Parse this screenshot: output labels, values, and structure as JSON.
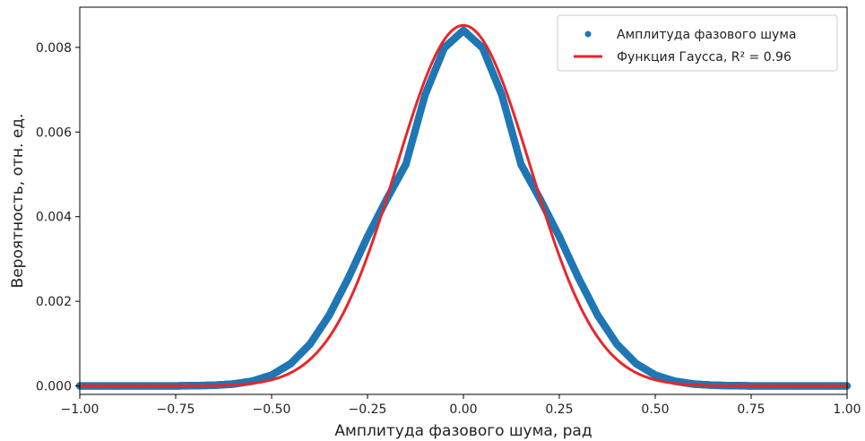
{
  "chart_data": {
    "type": "scatter",
    "title": "",
    "xlabel": "Амплитуда фазового шума, рад",
    "ylabel": "Вероятность, отн. ед.",
    "xlim": [
      -1.0,
      1.0
    ],
    "ylim": [
      -0.0002,
      0.00895
    ],
    "x_ticks": [
      -1.0,
      -0.75,
      -0.5,
      -0.25,
      0.0,
      0.25,
      0.5,
      0.75,
      1.0
    ],
    "x_tick_labels": [
      "−1.00",
      "−0.75",
      "−0.50",
      "−0.25",
      "0.00",
      "0.25",
      "0.50",
      "0.75",
      "1.00"
    ],
    "y_ticks": [
      0.0,
      0.002,
      0.004,
      0.006,
      0.008
    ],
    "y_tick_labels": [
      "0.000",
      "0.002",
      "0.004",
      "0.006",
      "0.008"
    ],
    "grid": false,
    "legend_position": "top-right",
    "series": [
      {
        "name": "Амплитуда фазового шума",
        "kind": "scatter",
        "color": "#1f77b4",
        "x": [
          -1.0,
          -0.95,
          -0.9,
          -0.85,
          -0.8,
          -0.75,
          -0.7,
          -0.65,
          -0.6,
          -0.55,
          -0.5,
          -0.45,
          -0.4,
          -0.35,
          -0.3,
          -0.25,
          -0.2,
          -0.15,
          -0.1,
          -0.05,
          0.0,
          0.05,
          0.1,
          0.15,
          0.2,
          0.25,
          0.3,
          0.35,
          0.4,
          0.45,
          0.5,
          0.55,
          0.6,
          0.65,
          0.7,
          0.75,
          0.8,
          0.85,
          0.9,
          0.95,
          1.0
        ],
        "y": [
          0.0,
          0.0,
          0.0,
          0.0,
          0.0,
          0.0,
          6e-06,
          1.6e-05,
          4.4e-05,
          0.000112,
          0.000255,
          0.000527,
          0.000986,
          0.001667,
          0.002549,
          0.003526,
          0.004412,
          0.005237,
          0.006877,
          0.007987,
          0.0084,
          0.007987,
          0.006877,
          0.005237,
          0.004412,
          0.003526,
          0.002549,
          0.001667,
          0.000986,
          0.000527,
          0.000255,
          0.000112,
          4.4e-05,
          1.6e-05,
          6e-06,
          0.0,
          0.0,
          0.0,
          0.0,
          0.0,
          0.0
        ]
      },
      {
        "name": "Функция Гаусса, R² = 0.96",
        "kind": "line",
        "color": "#e8262a",
        "amplitude": 0.00852,
        "mean": 0.0,
        "sigma": 0.175
      }
    ]
  }
}
